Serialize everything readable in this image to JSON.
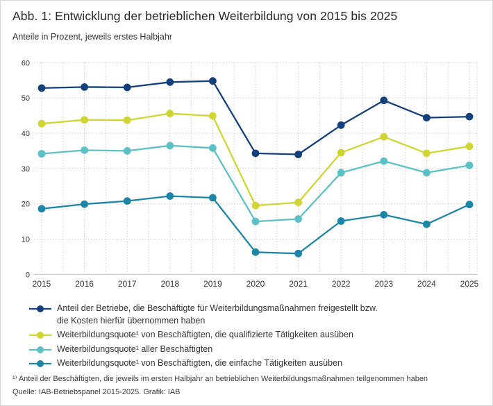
{
  "header": {
    "title": "Abb. 1: Entwicklung der betrieblichen Weiterbildung von 2015 bis 2025",
    "subtitle": "Anteile in Prozent, jeweils erstes Halbjahr"
  },
  "chart_data": {
    "type": "line",
    "x": [
      2015,
      2016,
      2017,
      2018,
      2019,
      2020,
      2021,
      2022,
      2023,
      2024,
      2025
    ],
    "ylim": [
      0,
      60
    ],
    "ytick_step": 10,
    "grid": {
      "horizontal": "dotted",
      "vertical": "dotted, half-year intervals",
      "baseline": "solid"
    },
    "legend_position": "bottom",
    "marker": "filled-circle",
    "series": [
      {
        "name": "Anteil der Betriebe, die Beschäftigte für Weiterbildungsmaßnahmen freigestellt bzw. die Kosten hierfür übernommen haben",
        "color": "#13407c",
        "values": [
          52.8,
          53.1,
          53.0,
          54.5,
          54.8,
          34.3,
          34.0,
          42.3,
          49.3,
          44.4,
          44.7
        ]
      },
      {
        "name": "Weiterbildungsquote¹ von Beschäftigten, die qualifizierte Tätigkeiten ausüben",
        "color": "#d0d531",
        "values": [
          42.7,
          43.8,
          43.7,
          45.6,
          44.9,
          19.5,
          20.4,
          34.5,
          39.0,
          34.3,
          36.3
        ]
      },
      {
        "name": "Weiterbildungsquote¹ aller Beschäftigten",
        "color": "#5cc1c5",
        "values": [
          34.2,
          35.2,
          35.0,
          36.5,
          35.8,
          15.0,
          15.7,
          28.8,
          32.1,
          28.8,
          30.9
        ]
      },
      {
        "name": "Weiterbildungsquote¹ von Beschäftigten, die einfache Tätigkeiten ausüben",
        "color": "#1b86a6",
        "values": [
          18.6,
          19.9,
          20.8,
          22.2,
          21.7,
          6.3,
          5.9,
          15.1,
          16.9,
          14.2,
          19.8
        ]
      }
    ]
  },
  "legend": {
    "items": [
      {
        "label": "Anteil der Betriebe, die Beschäftigte für Weiterbildungsmaßnahmen freigestellt bzw.\ndie Kosten hierfür übernommen haben",
        "color": "#13407c"
      },
      {
        "label": "Weiterbildungsquote¹ von Beschäftigten, die qualifizierte Tätigkeiten ausüben",
        "color": "#d0d531"
      },
      {
        "label": "Weiterbildungsquote¹ aller Beschäftigten",
        "color": "#5cc1c5"
      },
      {
        "label": "Weiterbildungsquote¹ von Beschäftigten, die einfache Tätigkeiten ausüben",
        "color": "#1b86a6"
      }
    ]
  },
  "footnote": {
    "note": "¹⁾ Anteil der Beschäftigten, die jeweils im ersten Halbjahr an betrieblichen Weiterbildungsmaßnahmen teilgenommen haben",
    "source": "Quelle: IAB-Betriebspanel 2015-2025. Grafik: IAB"
  }
}
